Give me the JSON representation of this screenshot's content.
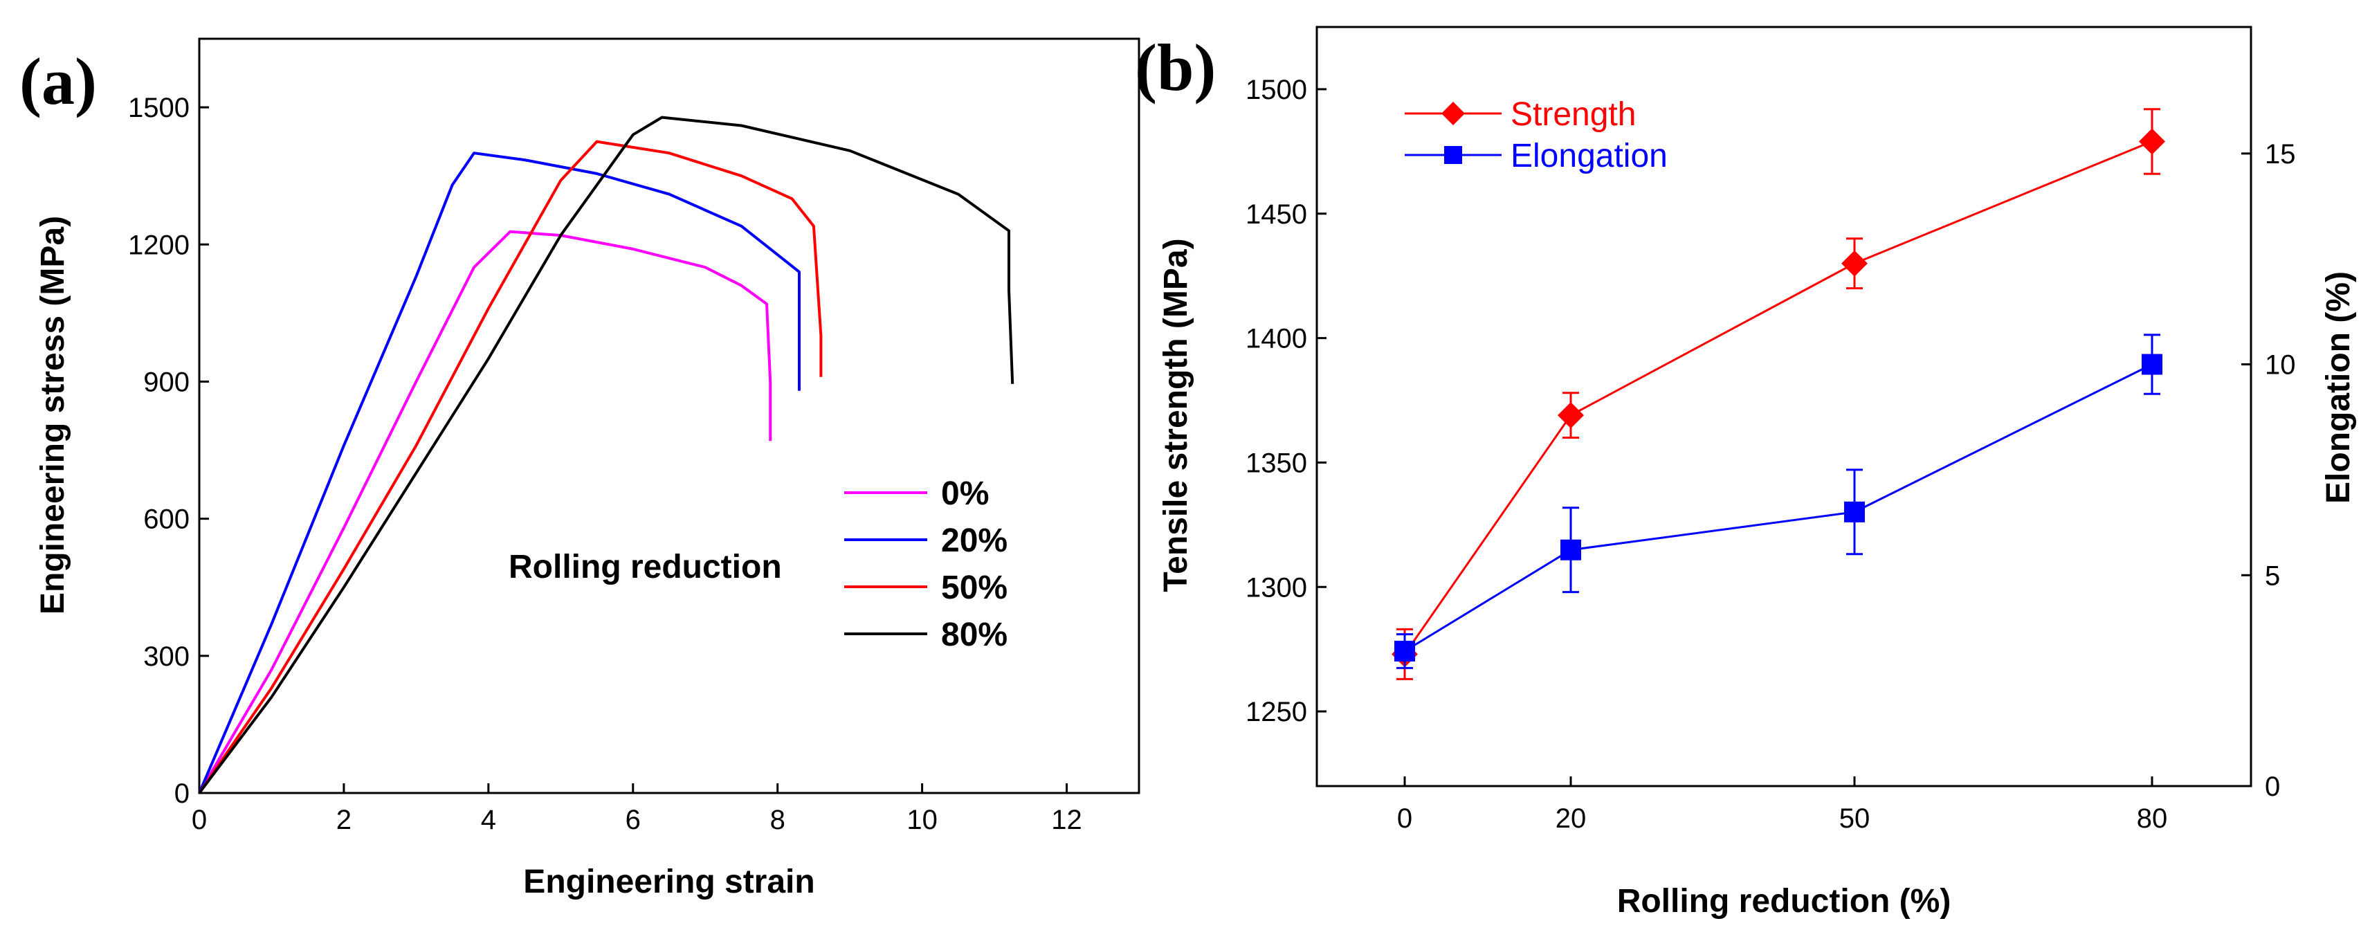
{
  "chart_data": [
    {
      "panel_label": "(a)",
      "type": "line",
      "xlabel": "Engineering strain",
      "ylabel": "Engineering stress (MPa)",
      "xlim": [
        0,
        13
      ],
      "ylim": [
        0,
        1650
      ],
      "xticks": [
        0,
        2,
        4,
        6,
        8,
        10,
        12
      ],
      "yticks": [
        0,
        300,
        600,
        900,
        1200,
        1500
      ],
      "legend_title": "Rolling reduction",
      "series": [
        {
          "name": "0%",
          "color": "#ff00ff",
          "x": [
            0,
            1,
            2,
            3,
            3.8,
            4.3,
            5,
            6,
            7,
            7.5,
            7.85,
            7.9,
            7.9
          ],
          "y": [
            0,
            270,
            580,
            900,
            1150,
            1228,
            1220,
            1190,
            1150,
            1110,
            1070,
            900,
            770
          ]
        },
        {
          "name": "20%",
          "color": "#0000ff",
          "x": [
            0,
            1,
            2,
            3,
            3.5,
            3.8,
            4.5,
            5.5,
            6.5,
            7.5,
            8.3,
            8.3
          ],
          "y": [
            0,
            370,
            760,
            1130,
            1330,
            1400,
            1385,
            1355,
            1310,
            1240,
            1140,
            880
          ]
        },
        {
          "name": "50%",
          "color": "#ff0000",
          "x": [
            0,
            1,
            2,
            3,
            4,
            5,
            5.5,
            6.5,
            7.5,
            8.2,
            8.5,
            8.6,
            8.6
          ],
          "y": [
            0,
            230,
            490,
            760,
            1060,
            1340,
            1425,
            1400,
            1350,
            1300,
            1240,
            1000,
            910
          ]
        },
        {
          "name": "80%",
          "color": "#000000",
          "x": [
            0,
            1,
            2,
            3,
            4,
            5,
            6,
            6.4,
            7.5,
            9,
            10.5,
            11.2,
            11.2,
            11.25
          ],
          "y": [
            0,
            210,
            450,
            700,
            950,
            1220,
            1440,
            1478,
            1460,
            1405,
            1310,
            1230,
            1100,
            895
          ]
        }
      ]
    },
    {
      "panel_label": "(b)",
      "type": "line",
      "xlabel": "Rolling reduction (%)",
      "ylabel_left": "Tensile strength (MPa)",
      "ylabel_right": "Elongation (%)",
      "categories": [
        "0",
        "20",
        "50",
        "80"
      ],
      "ylim_left": [
        1220,
        1525
      ],
      "ylim_right": [
        0,
        18
      ],
      "yticks_left": [
        1250,
        1300,
        1350,
        1400,
        1450,
        1500
      ],
      "yticks_right": [
        0,
        5,
        10,
        15
      ],
      "series": [
        {
          "name": "Strength",
          "color": "#ff0000",
          "axis": "left",
          "marker": "diamond",
          "values": [
            1273,
            1369,
            1430,
            1479
          ],
          "errors": [
            10,
            9,
            10,
            13
          ]
        },
        {
          "name": "Elongation",
          "color": "#0000ff",
          "axis": "right",
          "marker": "square",
          "values": [
            3.2,
            5.6,
            6.5,
            10.0
          ],
          "errors": [
            0.4,
            1.0,
            1.0,
            0.7
          ]
        }
      ]
    }
  ]
}
